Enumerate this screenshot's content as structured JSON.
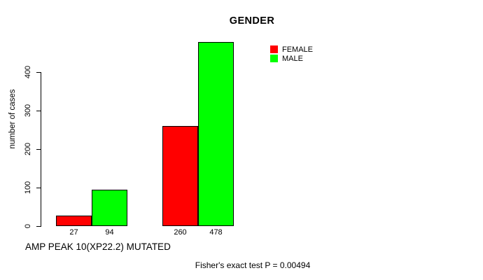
{
  "chart_data": {
    "type": "bar",
    "title": "GENDER",
    "ylabel": "number of cases",
    "xlabel": "AMP PEAK 10(XP22.2) MUTATED",
    "annotation": "Fisher's exact test P = 0.00494",
    "ylim": [
      0,
      400
    ],
    "yticks": [
      0,
      100,
      200,
      300,
      400
    ],
    "x_tick_labels": [
      "27",
      "94",
      "260",
      "478"
    ],
    "series": [
      {
        "name": "FEMALE",
        "color": "#ff0000",
        "values": [
          27,
          260
        ]
      },
      {
        "name": "MALE",
        "color": "#00ff00",
        "values": [
          94,
          478
        ]
      }
    ],
    "legend_position": "top-right",
    "grid": false,
    "background": "#ffffff",
    "bar_border_color": "#000000"
  }
}
